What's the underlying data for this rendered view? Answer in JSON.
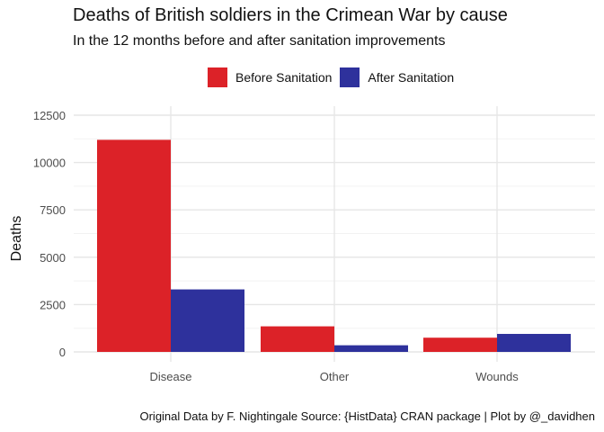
{
  "chart_data": {
    "type": "bar",
    "title": "Deaths of British soldiers in the Crimean War by cause",
    "subtitle": "In the 12 months before and after sanitation improvements",
    "xlabel": "",
    "ylabel": "Deaths",
    "categories": [
      "Disease",
      "Other",
      "Wounds"
    ],
    "series": [
      {
        "name": "Before Sanitation",
        "values": [
          11200,
          1350,
          750
        ],
        "color": "#dc2228"
      },
      {
        "name": "After Sanitation",
        "values": [
          3300,
          350,
          950
        ],
        "color": "#2e319c"
      }
    ],
    "yticks": [
      0,
      2500,
      5000,
      7500,
      10000,
      12500
    ],
    "ytick_labels": [
      "0",
      "2500",
      "5000",
      "7500",
      "10000",
      "12500"
    ],
    "ylim": [
      0,
      13000
    ],
    "grid": true,
    "legend_position": "top",
    "caption": "Original Data by F. Nightingale Source: {HistData} CRAN package | Plot by @_davidhen"
  }
}
